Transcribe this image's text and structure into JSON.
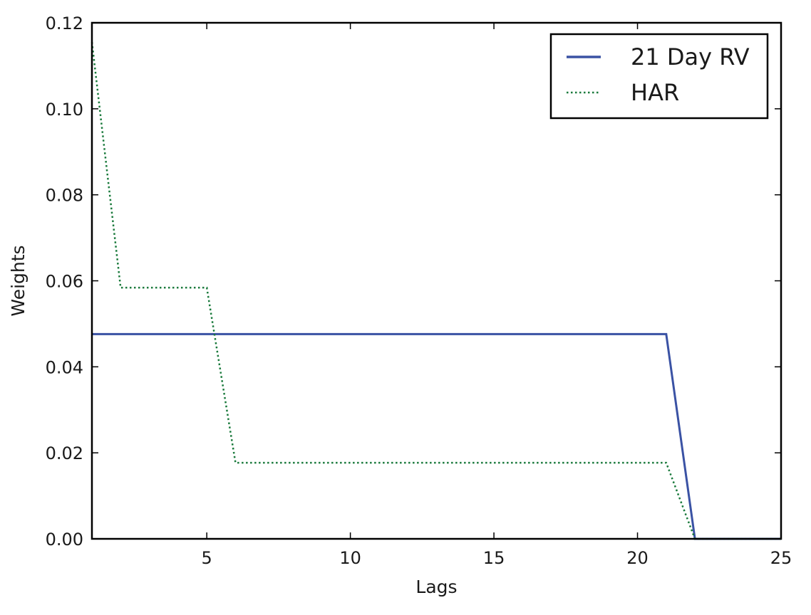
{
  "chart_data": {
    "type": "line",
    "title": "",
    "xlabel": "Lags",
    "ylabel": "Weights",
    "xlim": [
      1,
      25
    ],
    "ylim": [
      0,
      0.12
    ],
    "xticks": [
      5,
      10,
      15,
      20,
      25
    ],
    "xtick_labels": [
      "5",
      "10",
      "15",
      "20",
      "25"
    ],
    "yticks": [
      0,
      0.02,
      0.04,
      0.06,
      0.08,
      0.1,
      0.12
    ],
    "ytick_labels": [
      "0.00",
      "0.02",
      "0.04",
      "0.06",
      "0.08",
      "0.10",
      "0.12"
    ],
    "grid": false,
    "legend_position": "top-right",
    "series": [
      {
        "name": "21 Day RV",
        "color": "#3a52a4",
        "style": "solid",
        "x": [
          1,
          21,
          22,
          25
        ],
        "y": [
          0.0476,
          0.0476,
          0.0,
          0.0
        ]
      },
      {
        "name": "HAR",
        "color": "#1a7a3c",
        "style": "dotted",
        "x": [
          1,
          2,
          5,
          6,
          21,
          22,
          25
        ],
        "y": [
          0.1155,
          0.0584,
          0.0584,
          0.0177,
          0.0177,
          0.0,
          0.0
        ]
      }
    ]
  }
}
